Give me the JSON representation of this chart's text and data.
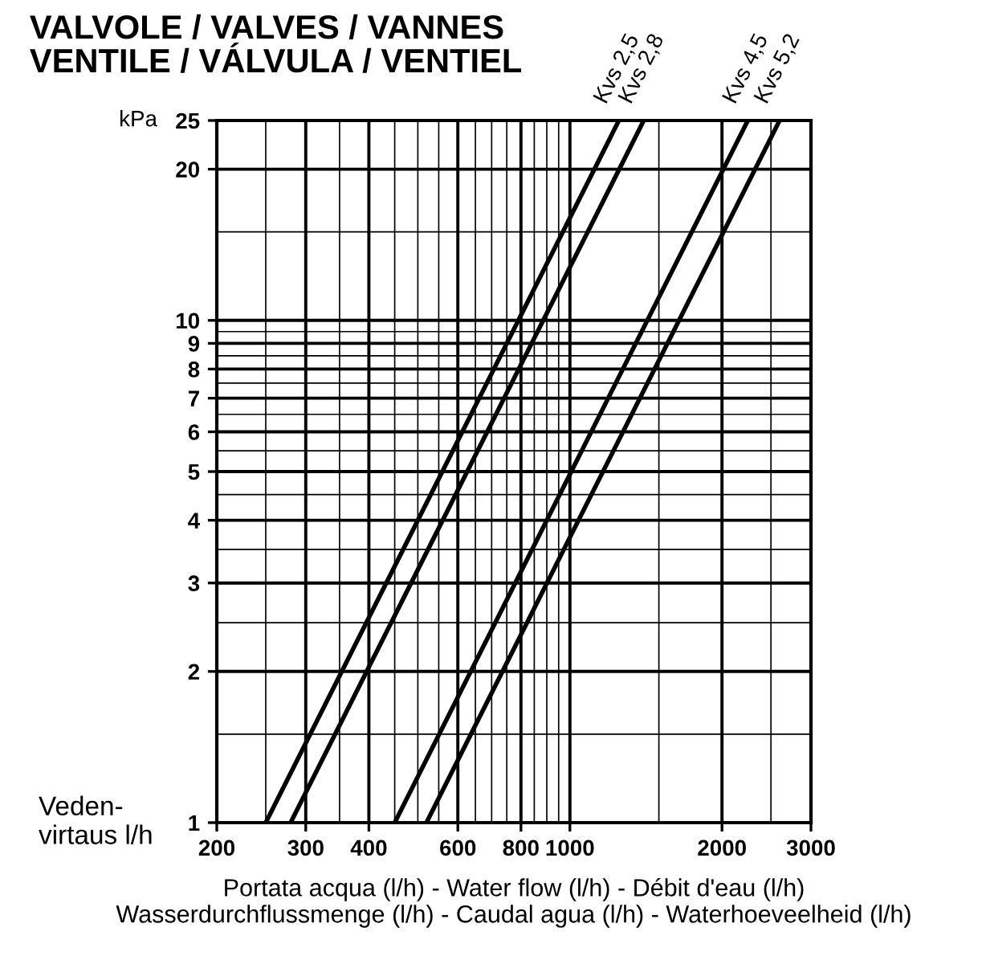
{
  "chart_data": {
    "type": "line",
    "title": "VALVOLE / VALVES / VANNES\nVENTILE / VÁLVULA / VENTIEL",
    "xlabel": "Portata acqua (l/h) - Water flow (l/h) - Débit d'eau (l/h)\nWasserdurchflussmenge (l/h) - Caudal agua (l/h) - Waterhoeveelheid (l/h)",
    "ylabel": "kPa",
    "annotations": [
      "Veden-\nvirtaus l/h"
    ],
    "log": "xy",
    "grid": true,
    "legend": false,
    "marker": "none",
    "line_style": "solid",
    "xlim": [
      200,
      3000
    ],
    "ylim": [
      1,
      25
    ],
    "xticks": [
      200,
      300,
      400,
      600,
      800,
      1000,
      2000,
      3000
    ],
    "yticks": [
      1,
      2,
      3,
      4,
      5,
      6,
      7,
      8,
      9,
      10,
      20,
      25
    ],
    "series": [
      {
        "name": "Kvs 2,5",
        "color": "#000000",
        "x": [
          250,
          1250
        ],
        "values": [
          1,
          25
        ]
      },
      {
        "name": "Kvs 2,8",
        "color": "#000000",
        "x": [
          280,
          1400
        ],
        "values": [
          1,
          25
        ]
      },
      {
        "name": "Kvs 4,5",
        "color": "#000000",
        "x": [
          450,
          2250
        ],
        "values": [
          1,
          25
        ]
      },
      {
        "name": "Kvs 5,2",
        "color": "#000000",
        "x": [
          520,
          2600
        ],
        "values": [
          1,
          25
        ]
      }
    ]
  }
}
